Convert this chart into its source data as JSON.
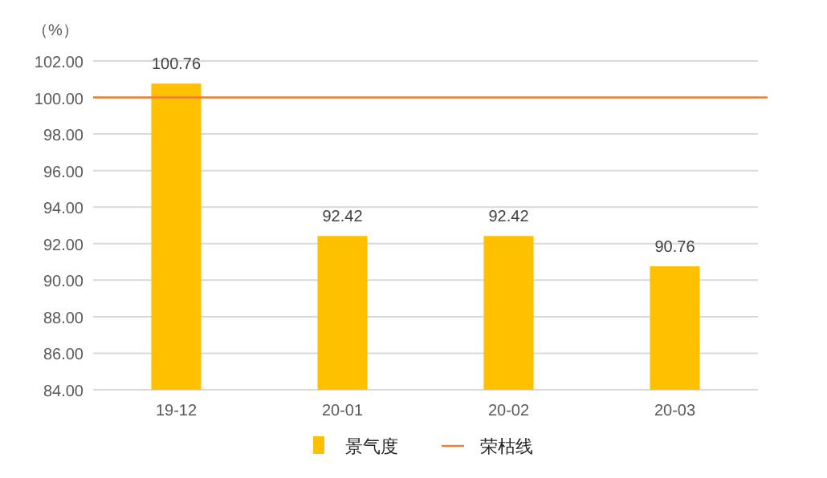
{
  "chart_data": {
    "type": "bar",
    "ylabel": "（%）",
    "categories": [
      "19-12",
      "20-01",
      "20-02",
      "20-03"
    ],
    "series": [
      {
        "name": "景气度",
        "color": "#ffc000",
        "values": [
          100.76,
          92.42,
          92.42,
          90.76
        ]
      }
    ],
    "ylim": [
      84,
      102
    ],
    "yticks": [
      {
        "value": 84,
        "label": "84.00"
      },
      {
        "value": 86,
        "label": "86.00"
      },
      {
        "value": 88,
        "label": "88.00"
      },
      {
        "value": 90,
        "label": "90.00"
      },
      {
        "value": 92,
        "label": "92.00"
      },
      {
        "value": 94,
        "label": "94.00"
      },
      {
        "value": 96,
        "label": "96.00"
      },
      {
        "value": 98,
        "label": "98.00"
      },
      {
        "value": 100,
        "label": "100.00"
      },
      {
        "value": 102,
        "label": "102.00"
      }
    ],
    "ref_lines": [
      {
        "axis": "y",
        "value": 100,
        "label": "荣枯线",
        "color": "#ed7d31"
      }
    ],
    "data_labels": true,
    "grid": "y",
    "legend": "bottom"
  }
}
